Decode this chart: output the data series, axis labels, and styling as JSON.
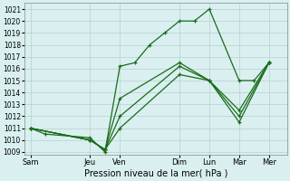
{
  "background_color": "#daf0f0",
  "grid_color": "#b0c8c8",
  "line_color": "#1a6b1a",
  "x_labels": [
    "Sam",
    "Jeu",
    "Ven",
    "Dim",
    "Lun",
    "Mar",
    "Mer"
  ],
  "x_tick_pos": [
    0,
    2,
    3,
    5,
    6,
    7,
    8
  ],
  "xlim": [
    -0.2,
    8.6
  ],
  "ylim": [
    1008.8,
    1021.5
  ],
  "yticks": [
    1009,
    1010,
    1011,
    1012,
    1013,
    1014,
    1015,
    1016,
    1017,
    1018,
    1019,
    1020,
    1021
  ],
  "xlabel": "Pression niveau de la mer( hPa )",
  "peaked_line": {
    "x": [
      0,
      0.5,
      2,
      2.5,
      3,
      3.5,
      4,
      4.5,
      5,
      5.5,
      6,
      7,
      7.5,
      8
    ],
    "y": [
      1011,
      1010.5,
      1010.2,
      1009.0,
      1016.2,
      1016.5,
      1018.0,
      1019.0,
      1020.0,
      1020.0,
      1021.0,
      1015.0,
      1015.0,
      1016.5
    ]
  },
  "gradual_lines": [
    {
      "x": [
        0,
        2,
        2.5,
        3,
        5,
        6,
        7,
        8
      ],
      "y": [
        1011,
        1010,
        1009.2,
        1013.5,
        1016.5,
        1015.0,
        1012.5,
        1016.5
      ]
    },
    {
      "x": [
        0,
        2,
        2.5,
        3,
        5,
        6,
        7,
        8
      ],
      "y": [
        1011,
        1010,
        1009.2,
        1012.0,
        1016.2,
        1015.0,
        1012.0,
        1016.5
      ]
    },
    {
      "x": [
        0,
        2,
        2.5,
        3,
        5,
        6,
        7,
        8
      ],
      "y": [
        1011,
        1010,
        1009.2,
        1011.0,
        1015.5,
        1015.0,
        1011.5,
        1016.5
      ]
    }
  ]
}
